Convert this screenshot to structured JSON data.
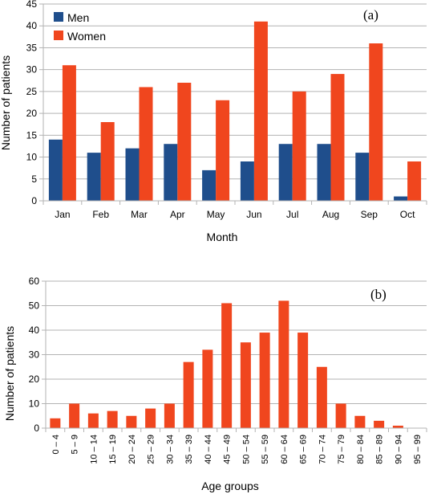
{
  "chart_data": [
    {
      "type": "bar",
      "panel_label": "(a)",
      "categories": [
        "Jan",
        "Feb",
        "Mar",
        "Apr",
        "May",
        "Jun",
        "Jul",
        "Aug",
        "Sep",
        "Oct"
      ],
      "series": [
        {
          "name": "Men",
          "color": "#1F4E8C",
          "values": [
            14,
            11,
            12,
            13,
            7,
            9,
            13,
            13,
            11,
            1
          ]
        },
        {
          "name": "Women",
          "color": "#F0461E",
          "values": [
            31,
            18,
            26,
            27,
            23,
            41,
            25,
            29,
            36,
            9
          ]
        }
      ],
      "xlabel": "Month",
      "ylabel": "Number of patients",
      "ylim": [
        0,
        45
      ],
      "yticks": [
        0,
        5,
        10,
        15,
        20,
        25,
        30,
        35,
        40,
        45
      ],
      "grid": true,
      "legend_position": "top-left"
    },
    {
      "type": "bar",
      "panel_label": "(b)",
      "categories": [
        "0 – 4",
        "5 – 9",
        "10 – 14",
        "15 – 19",
        "20 – 24",
        "25 – 29",
        "30 – 34",
        "35 – 39",
        "40 – 44",
        "45 – 49",
        "50 – 54",
        "55 – 59",
        "60 – 64",
        "65 – 69",
        "70 – 74",
        "75 – 79",
        "80 – 84",
        "85 – 89",
        "90 – 94",
        "95 – 99"
      ],
      "series": [
        {
          "color": "#F0461E",
          "values": [
            4,
            10,
            6,
            7,
            5,
            8,
            10,
            27,
            32,
            51,
            35,
            39,
            52,
            39,
            25,
            10,
            5,
            3,
            1,
            0
          ]
        }
      ],
      "xlabel": "Age groups",
      "ylabel": "Number of patients",
      "ylim": [
        0,
        60
      ],
      "yticks": [
        0,
        10,
        20,
        30,
        40,
        50,
        60
      ],
      "grid": true
    }
  ]
}
